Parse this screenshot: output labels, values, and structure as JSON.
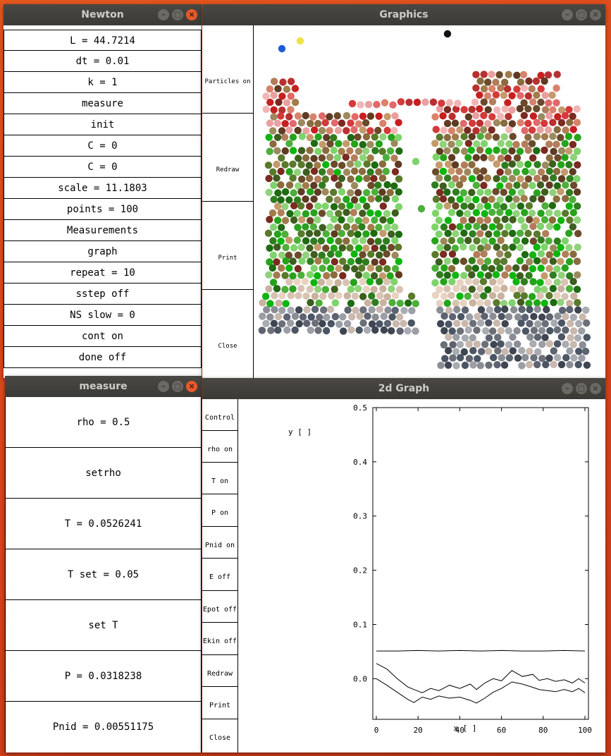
{
  "newton": {
    "title": "Newton",
    "buttons": [
      "L = 44.7214",
      "dt = 0.01",
      "k = 1",
      "measure",
      "init",
      "C = 0",
      "C = 0",
      "scale = 11.1803",
      "points = 100",
      "Measurements",
      "graph",
      "repeat = 10",
      "sstep off",
      "NS slow = 0",
      "cont on",
      "done off"
    ]
  },
  "graphics": {
    "title": "Graphics",
    "buttons": [
      "Particles on",
      "Redraw",
      "Print",
      "Close"
    ]
  },
  "measure": {
    "title": "measure",
    "rows": [
      "rho = 0.5",
      "setrho",
      "T = 0.0526241",
      "T set = 0.05",
      "set T",
      "P = 0.0318238",
      "Pnid = 0.00551175"
    ]
  },
  "graph": {
    "title": "2d Graph",
    "buttons": [
      "Control",
      "rho on",
      "T on",
      "P on",
      "Pnid on",
      "E off",
      "Epot off",
      "Ekin off",
      "Redraw",
      "Print",
      "Close"
    ]
  },
  "window_controls": {
    "minimize": "–",
    "maximize": "□",
    "close": "×"
  },
  "chart_data": {
    "type": "line",
    "xlabel": "x [ ]",
    "ylabel": "y [ ]",
    "xlim": [
      0,
      100
    ],
    "ylim": [
      -0.075,
      0.5
    ],
    "xticks": [
      "0",
      "20",
      "40",
      "60",
      "80",
      "100"
    ],
    "yticks": [
      "0.0",
      "0.1",
      "0.2",
      "0.3",
      "0.4",
      "0.5"
    ],
    "ytick_values": [
      0.0,
      0.1,
      0.2,
      0.3,
      0.4,
      0.5
    ],
    "xtick_values": [
      0,
      20,
      40,
      60,
      80,
      100
    ],
    "series": [
      {
        "values": [
          [
            0,
            0.051
          ],
          [
            10,
            0.051
          ],
          [
            20,
            0.052
          ],
          [
            30,
            0.051
          ],
          [
            40,
            0.052
          ],
          [
            50,
            0.051
          ],
          [
            60,
            0.052
          ],
          [
            70,
            0.051
          ],
          [
            80,
            0.051
          ],
          [
            90,
            0.052
          ],
          [
            100,
            0.051
          ]
        ]
      },
      {
        "values": [
          [
            0,
            0.028
          ],
          [
            5,
            0.018
          ],
          [
            10,
            0.0
          ],
          [
            15,
            -0.015
          ],
          [
            18,
            -0.02
          ],
          [
            22,
            -0.026
          ],
          [
            26,
            -0.018
          ],
          [
            30,
            -0.022
          ],
          [
            35,
            -0.012
          ],
          [
            40,
            -0.018
          ],
          [
            45,
            -0.01
          ],
          [
            48,
            -0.02
          ],
          [
            52,
            -0.008
          ],
          [
            56,
            0.0
          ],
          [
            60,
            -0.004
          ],
          [
            65,
            0.015
          ],
          [
            70,
            0.004
          ],
          [
            75,
            0.008
          ],
          [
            78,
            -0.003
          ],
          [
            82,
            0.0
          ],
          [
            86,
            -0.005
          ],
          [
            90,
            -0.002
          ],
          [
            94,
            -0.008
          ],
          [
            97,
            0.0
          ],
          [
            100,
            -0.008
          ]
        ]
      },
      {
        "values": [
          [
            0,
            0.0
          ],
          [
            5,
            -0.012
          ],
          [
            10,
            -0.025
          ],
          [
            15,
            -0.038
          ],
          [
            18,
            -0.044
          ],
          [
            22,
            -0.034
          ],
          [
            26,
            -0.038
          ],
          [
            30,
            -0.032
          ],
          [
            35,
            -0.036
          ],
          [
            40,
            -0.034
          ],
          [
            45,
            -0.04
          ],
          [
            48,
            -0.045
          ],
          [
            52,
            -0.036
          ],
          [
            56,
            -0.025
          ],
          [
            60,
            -0.018
          ],
          [
            65,
            -0.006
          ],
          [
            70,
            -0.01
          ],
          [
            75,
            -0.016
          ],
          [
            78,
            -0.02
          ],
          [
            82,
            -0.022
          ],
          [
            86,
            -0.024
          ],
          [
            90,
            -0.02
          ],
          [
            94,
            -0.024
          ],
          [
            97,
            -0.018
          ],
          [
            100,
            -0.026
          ]
        ]
      }
    ]
  }
}
